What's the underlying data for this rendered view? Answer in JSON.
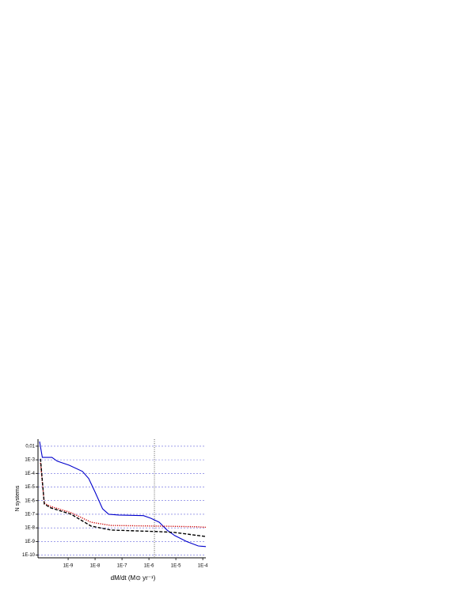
{
  "chart_data": {
    "type": "line",
    "ylabel": "N systems",
    "xlabel": "dM/dt   (M⊙ yr⁻¹)",
    "xscale": "log",
    "yscale": "log",
    "grid": true,
    "xlim": [
      7.6e-11,
      0.00013
    ],
    "ylim": [
      6.3e-11,
      0.033
    ],
    "xticks": [
      {
        "value": 1e-09,
        "label": "1E-9"
      },
      {
        "value": 1e-08,
        "label": "1E-8"
      },
      {
        "value": 1e-07,
        "label": "1E-7"
      },
      {
        "value": 1e-06,
        "label": "1E-6"
      },
      {
        "value": 1e-05,
        "label": "1E-5"
      },
      {
        "value": 0.0001,
        "label": "1E-4"
      }
    ],
    "yticks": [
      {
        "value": 0.01,
        "label": "0,01"
      },
      {
        "value": 0.001,
        "label": "1E-3"
      },
      {
        "value": 0.0001,
        "label": "1E-4"
      },
      {
        "value": 1e-05,
        "label": "1E-5"
      },
      {
        "value": 1e-06,
        "label": "1E-6"
      },
      {
        "value": 1e-07,
        "label": "1E-7"
      },
      {
        "value": 1e-08,
        "label": "1E-8"
      },
      {
        "value": 1e-09,
        "label": "1E-9"
      },
      {
        "value": 1e-10,
        "label": "1E-10"
      }
    ],
    "reference_line_x": 1.6e-06,
    "series": [
      {
        "color": "#0000cc",
        "dash": "solid",
        "x": [
          8.7e-11,
          1.1e-10,
          2.5e-10,
          3.9e-10,
          1.1e-09,
          3.4e-09,
          5.8e-09,
          1e-08,
          1.9e-08,
          3.2e-08,
          7.6e-08,
          6.3e-07,
          1.2e-06,
          2.4e-06,
          4.7e-06,
          9.1e-06,
          2.5e-05,
          6.8e-05,
          0.00013
        ],
        "values": [
          0.022,
          0.0015,
          0.0015,
          0.0008,
          0.0004,
          0.00014,
          4.2e-05,
          4.3e-06,
          2.5e-07,
          1e-07,
          8.7e-08,
          7.9e-08,
          5e-08,
          2.6e-08,
          6.9e-09,
          2.7e-09,
          1e-09,
          4.7e-10,
          4.2e-10
        ]
      },
      {
        "color": "#cc0000",
        "dash": "dotted",
        "x": [
          9.4e-11,
          1.3e-10,
          2.2e-10,
          1.3e-09,
          7.1e-09,
          3.9e-08,
          2.2e-06,
          6.2e-05,
          0.00013
        ],
        "values": [
          0.0006,
          6.5e-07,
          3.8e-07,
          1.3e-07,
          2.6e-08,
          1.5e-08,
          1.35e-08,
          1.2e-08,
          1.1e-08
        ]
      },
      {
        "color": "#000000",
        "dash": "dashed",
        "x": [
          9.4e-11,
          1.3e-10,
          2.2e-10,
          1.3e-09,
          7.1e-09,
          3.9e-08,
          2.2e-06,
          9.1e-06,
          0.00013
        ],
        "values": [
          0.0012,
          5.7e-07,
          3e-07,
          1e-07,
          1.35e-08,
          6.9e-09,
          5.3e-09,
          4.6e-09,
          2.3e-09
        ]
      }
    ]
  }
}
